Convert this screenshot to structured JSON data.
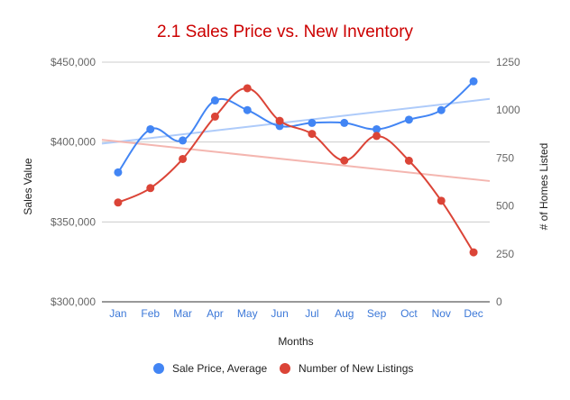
{
  "chart_data": {
    "type": "line",
    "title": "2.1 Sales Price vs. New Inventory",
    "xlabel": "Months",
    "ylabel_left": "Sales Value",
    "ylabel_right": "# of Homes Listed",
    "categories": [
      "Jan",
      "Feb",
      "Mar",
      "Apr",
      "May",
      "Jun",
      "Jul",
      "Aug",
      "Sep",
      "Oct",
      "Nov",
      "Dec"
    ],
    "left_axis": {
      "min": 300000,
      "max": 450000,
      "ticks": [
        "$300,000",
        "$350,000",
        "$400,000",
        "$450,000"
      ],
      "tick_values": [
        300000,
        350000,
        400000,
        450000
      ]
    },
    "right_axis": {
      "min": 0,
      "max": 1250,
      "ticks": [
        "0",
        "250",
        "500",
        "750",
        "1000",
        "1250"
      ],
      "tick_values": [
        0,
        250,
        500,
        750,
        1000,
        1250
      ]
    },
    "series": [
      {
        "name": "Sale Price, Average",
        "axis": "left",
        "color": "#4285f4",
        "trend_color": "#aecbfa",
        "values": [
          381000,
          408000,
          401000,
          426000,
          420000,
          410000,
          412000,
          412000,
          408000,
          414000,
          420000,
          438000
        ],
        "trendline": [
          399000,
          427000
        ]
      },
      {
        "name": "Number of New Listings",
        "axis": "right",
        "color": "#db4437",
        "trend_color": "#f4b6b0",
        "values": [
          518,
          593,
          745,
          966,
          1114,
          944,
          876,
          737,
          865,
          736,
          527,
          258
        ],
        "trendline": [
          845,
          630
        ]
      }
    ],
    "grid": true,
    "legend_position": "bottom"
  }
}
